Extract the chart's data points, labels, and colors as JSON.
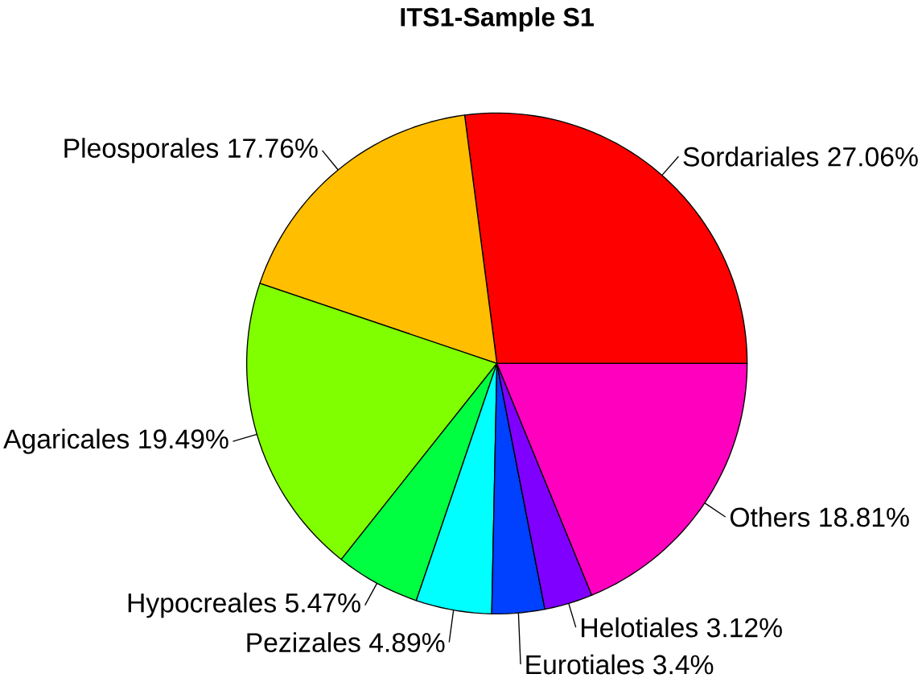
{
  "chart_data": {
    "type": "pie",
    "title": "ITS1-Sample S1",
    "categories": [
      "Sordariales",
      "Pleosporales",
      "Agaricales",
      "Hypocreales",
      "Pezizales",
      "Eurotiales",
      "Helotiales",
      "Others"
    ],
    "values": [
      27.06,
      17.76,
      19.49,
      5.47,
      4.89,
      3.4,
      3.12,
      18.81
    ],
    "value_labels": [
      "27.06%",
      "17.76%",
      "19.49%",
      "5.47%",
      "4.89%",
      "3.4%",
      "3.12%",
      "18.81%"
    ],
    "colors": [
      "#ff0000",
      "#ffbf00",
      "#80ff00",
      "#00ff40",
      "#00ffff",
      "#0040ff",
      "#8000ff",
      "#ff00bf"
    ]
  }
}
